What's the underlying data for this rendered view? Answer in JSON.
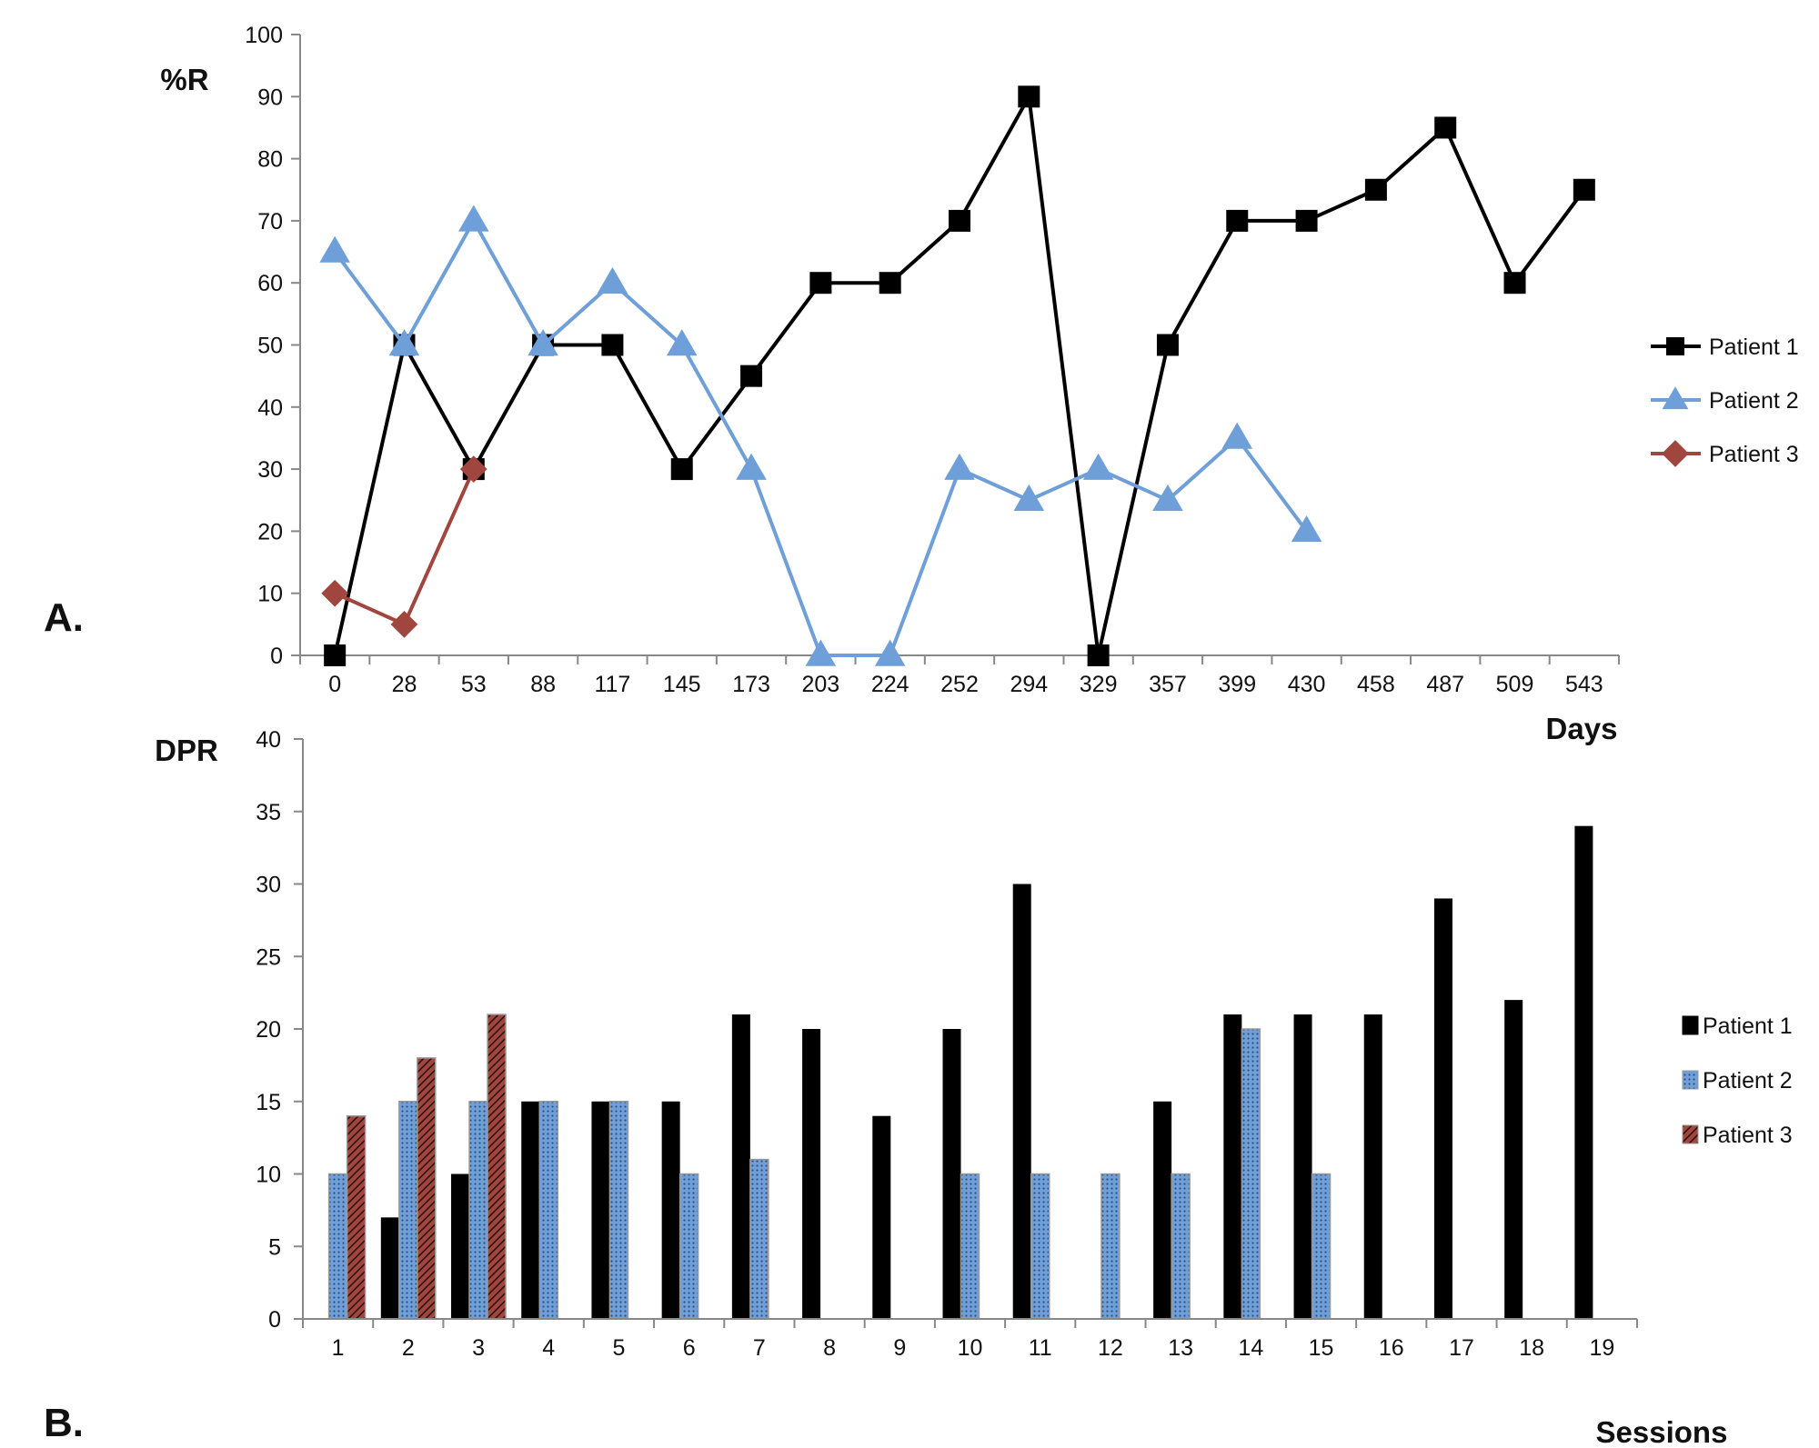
{
  "figure": {
    "panel_a_label": "A.",
    "panel_b_label": "B."
  },
  "chart_data": [
    {
      "type": "line",
      "panel": "A.",
      "ylabel": "%R",
      "xlabel": "Days",
      "ylim": [
        0,
        100
      ],
      "yticks": [
        0,
        10,
        20,
        30,
        40,
        50,
        60,
        70,
        80,
        90,
        100
      ],
      "categories": [
        "0",
        "28",
        "53",
        "88",
        "117",
        "145",
        "173",
        "203",
        "224",
        "252",
        "294",
        "329",
        "357",
        "399",
        "430",
        "458",
        "487",
        "509",
        "543"
      ],
      "series": [
        {
          "name": "Patient 1",
          "color": "#000000",
          "marker": "square",
          "values": [
            0,
            50,
            30,
            50,
            50,
            30,
            45,
            60,
            60,
            70,
            90,
            0,
            50,
            70,
            70,
            75,
            85,
            60,
            75
          ]
        },
        {
          "name": "Patient 2",
          "color": "#6f9fd8",
          "marker": "triangle",
          "values": [
            65,
            50,
            70,
            50,
            60,
            50,
            30,
            0,
            0,
            30,
            25,
            30,
            25,
            35,
            20,
            null,
            null,
            null,
            null
          ]
        },
        {
          "name": "Patient 3",
          "color": "#a0463e",
          "marker": "diamond",
          "values": [
            10,
            5,
            30,
            null,
            null,
            null,
            null,
            null,
            null,
            null,
            null,
            null,
            null,
            null,
            null,
            null,
            null,
            null,
            null
          ]
        }
      ],
      "legend": "right"
    },
    {
      "type": "bar",
      "panel": "B.",
      "ylabel": "DPR",
      "xlabel": "Sessions",
      "ylim": [
        0,
        40
      ],
      "yticks": [
        0,
        5,
        10,
        15,
        20,
        25,
        30,
        35,
        40
      ],
      "categories": [
        "1",
        "2",
        "3",
        "4",
        "5",
        "6",
        "7",
        "8",
        "9",
        "10",
        "11",
        "12",
        "13",
        "14",
        "15",
        "16",
        "17",
        "18",
        "19"
      ],
      "series": [
        {
          "name": "Patient 1",
          "color": "#000000",
          "pattern": "solid",
          "values": [
            null,
            7,
            10,
            15,
            15,
            15,
            21,
            20,
            14,
            20,
            30,
            null,
            15,
            21,
            21,
            21,
            29,
            22,
            34
          ]
        },
        {
          "name": "Patient 2",
          "color": "#6f9fd8",
          "pattern": "dotted",
          "values": [
            10,
            15,
            15,
            15,
            15,
            10,
            11,
            null,
            null,
            10,
            10,
            10,
            10,
            20,
            10,
            null,
            null,
            null,
            null
          ]
        },
        {
          "name": "Patient 3",
          "color": "#a0463e",
          "pattern": "hatched",
          "values": [
            14,
            18,
            21,
            null,
            null,
            null,
            null,
            null,
            null,
            null,
            null,
            null,
            null,
            null,
            null,
            null,
            null,
            null,
            null
          ]
        }
      ],
      "legend": "right"
    }
  ]
}
